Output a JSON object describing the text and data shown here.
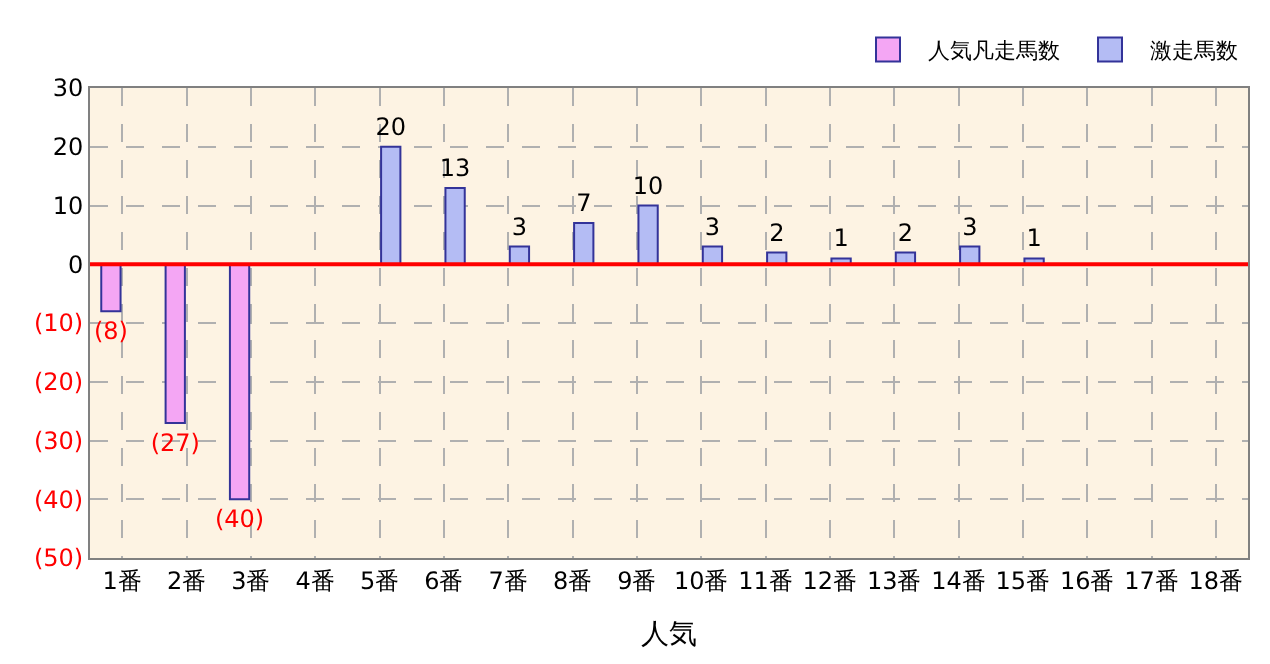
{
  "chart_data": {
    "type": "bar",
    "xlabel": "人気",
    "categories": [
      "1番",
      "2番",
      "3番",
      "4番",
      "5番",
      "6番",
      "7番",
      "8番",
      "9番",
      "10番",
      "11番",
      "12番",
      "13番",
      "14番",
      "15番",
      "16番",
      "17番",
      "18番"
    ],
    "series": [
      {
        "name": "人気凡走馬数",
        "color": "#f4a6f4",
        "values": [
          -8,
          -27,
          -40,
          null,
          null,
          null,
          null,
          null,
          null,
          null,
          null,
          null,
          null,
          null,
          null,
          null,
          null,
          null
        ],
        "value_labels": [
          "(8)",
          "(27)",
          "(40)",
          null,
          null,
          null,
          null,
          null,
          null,
          null,
          null,
          null,
          null,
          null,
          null,
          null,
          null,
          null
        ]
      },
      {
        "name": "激走馬数",
        "color": "#b4bcf4",
        "values": [
          null,
          null,
          null,
          null,
          20,
          13,
          3,
          7,
          10,
          3,
          2,
          1,
          2,
          3,
          1,
          null,
          null,
          null
        ],
        "value_labels": [
          null,
          null,
          null,
          null,
          "20",
          "13",
          "3",
          "7",
          "10",
          "3",
          "2",
          "1",
          "2",
          "3",
          "1",
          null,
          null,
          null
        ]
      }
    ],
    "ylim": [
      -50,
      30
    ],
    "yticks": [
      30,
      20,
      10,
      0,
      {
        "value": -10,
        "label": "(10)"
      },
      {
        "value": -20,
        "label": "(20)"
      },
      {
        "value": -30,
        "label": "(30)"
      },
      {
        "value": -40,
        "label": "(40)"
      },
      {
        "value": -50,
        "label": "(50)"
      }
    ],
    "ref_lines": [
      {
        "axis": "y",
        "value": 0,
        "label": null,
        "color": "#ff0000"
      }
    ],
    "grid": true,
    "legend": "top right"
  }
}
